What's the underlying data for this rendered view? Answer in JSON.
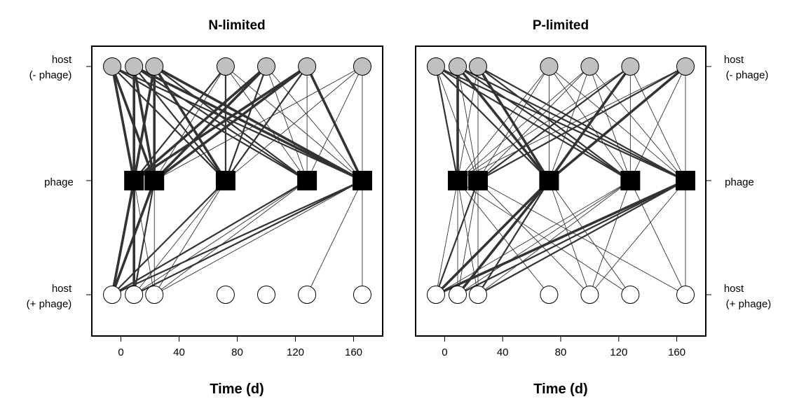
{
  "chart_data": [
    {
      "type": "network",
      "title": "N-limited",
      "xlabel": "Time (d)",
      "xlim": [
        -20,
        180
      ],
      "xticks": [
        0,
        40,
        80,
        120,
        160
      ],
      "rows": [
        {
          "key": "host_minus",
          "line1": "host",
          "line2": "(- phage)"
        },
        {
          "key": "phage",
          "line1": "phage",
          "line2": ""
        },
        {
          "key": "host_plus",
          "line1": "host",
          "line2": "(+ phage)"
        }
      ],
      "row_label_side": "left",
      "nodes": {
        "host_minus": [
          -6,
          9,
          23,
          72,
          100,
          128,
          166
        ],
        "phage": [
          9,
          23,
          72,
          128,
          166
        ],
        "host_plus": [
          -6,
          9,
          23,
          72,
          100,
          128,
          166
        ]
      },
      "links_upper": [
        [
          -6,
          9,
          3
        ],
        [
          -6,
          23,
          3
        ],
        [
          -6,
          72,
          2
        ],
        [
          -6,
          128,
          2
        ],
        [
          -6,
          166,
          2
        ],
        [
          9,
          9,
          3
        ],
        [
          9,
          23,
          3
        ],
        [
          9,
          72,
          2
        ],
        [
          9,
          128,
          2
        ],
        [
          9,
          166,
          3
        ],
        [
          23,
          9,
          3
        ],
        [
          23,
          23,
          3
        ],
        [
          23,
          72,
          3
        ],
        [
          23,
          128,
          2
        ],
        [
          23,
          166,
          3
        ],
        [
          72,
          9,
          2
        ],
        [
          72,
          23,
          1
        ],
        [
          72,
          72,
          2
        ],
        [
          72,
          128,
          1
        ],
        [
          72,
          166,
          1
        ],
        [
          100,
          9,
          3
        ],
        [
          100,
          23,
          3
        ],
        [
          100,
          72,
          2
        ],
        [
          100,
          128,
          1
        ],
        [
          100,
          166,
          1
        ],
        [
          128,
          9,
          3
        ],
        [
          128,
          23,
          3
        ],
        [
          128,
          72,
          2
        ],
        [
          128,
          128,
          1
        ],
        [
          128,
          166,
          3
        ],
        [
          166,
          23,
          1
        ],
        [
          166,
          72,
          1
        ],
        [
          166,
          128,
          1
        ],
        [
          166,
          166,
          1
        ]
      ],
      "links_lower": [
        [
          9,
          -6,
          3
        ],
        [
          9,
          9,
          3
        ],
        [
          9,
          23,
          1
        ],
        [
          23,
          -6,
          3
        ],
        [
          23,
          9,
          2
        ],
        [
          23,
          23,
          1
        ],
        [
          72,
          -6,
          2
        ],
        [
          72,
          9,
          1
        ],
        [
          72,
          23,
          1
        ],
        [
          128,
          -6,
          2
        ],
        [
          128,
          9,
          1
        ],
        [
          128,
          23,
          1
        ],
        [
          166,
          -6,
          2
        ],
        [
          166,
          9,
          2
        ],
        [
          166,
          23,
          1
        ],
        [
          166,
          128,
          1
        ],
        [
          166,
          166,
          1
        ]
      ]
    },
    {
      "type": "network",
      "title": "P-limited",
      "xlabel": "Time (d)",
      "xlim": [
        -20,
        180
      ],
      "xticks": [
        0,
        40,
        80,
        120,
        160
      ],
      "rows": [
        {
          "key": "host_minus",
          "line1": "host",
          "line2": "(- phage)"
        },
        {
          "key": "phage",
          "line1": "phage",
          "line2": ""
        },
        {
          "key": "host_plus",
          "line1": "host",
          "line2": "(+ phage)"
        }
      ],
      "row_label_side": "right",
      "nodes": {
        "host_minus": [
          -6,
          9,
          23,
          72,
          100,
          128,
          166
        ],
        "phage": [
          9,
          23,
          72,
          128,
          166
        ],
        "host_plus": [
          -6,
          9,
          23,
          72,
          100,
          128,
          166
        ]
      },
      "links_upper": [
        [
          -6,
          9,
          2
        ],
        [
          -6,
          23,
          1
        ],
        [
          -6,
          72,
          2
        ],
        [
          -6,
          128,
          2
        ],
        [
          -6,
          166,
          2
        ],
        [
          9,
          9,
          3
        ],
        [
          9,
          23,
          1
        ],
        [
          9,
          72,
          3
        ],
        [
          9,
          128,
          2
        ],
        [
          9,
          166,
          2
        ],
        [
          23,
          9,
          1
        ],
        [
          23,
          23,
          1
        ],
        [
          23,
          72,
          3
        ],
        [
          23,
          128,
          2
        ],
        [
          23,
          166,
          2
        ],
        [
          72,
          9,
          1
        ],
        [
          72,
          23,
          1
        ],
        [
          72,
          72,
          1
        ],
        [
          72,
          128,
          1
        ],
        [
          72,
          166,
          1
        ],
        [
          100,
          9,
          1
        ],
        [
          100,
          23,
          1
        ],
        [
          100,
          72,
          1
        ],
        [
          100,
          128,
          1
        ],
        [
          100,
          166,
          1
        ],
        [
          128,
          9,
          1
        ],
        [
          128,
          23,
          2
        ],
        [
          128,
          72,
          3
        ],
        [
          128,
          128,
          1
        ],
        [
          128,
          166,
          1
        ],
        [
          166,
          9,
          1
        ],
        [
          166,
          23,
          2
        ],
        [
          166,
          72,
          3
        ],
        [
          166,
          128,
          1
        ],
        [
          166,
          166,
          1
        ]
      ],
      "links_lower": [
        [
          9,
          -6,
          1
        ],
        [
          9,
          9,
          1
        ],
        [
          9,
          23,
          1
        ],
        [
          9,
          72,
          1
        ],
        [
          9,
          128,
          1
        ],
        [
          23,
          -6,
          2
        ],
        [
          23,
          9,
          1
        ],
        [
          23,
          23,
          1
        ],
        [
          23,
          100,
          1
        ],
        [
          23,
          166,
          1
        ],
        [
          72,
          -6,
          3
        ],
        [
          72,
          9,
          3
        ],
        [
          72,
          23,
          2
        ],
        [
          72,
          100,
          1
        ],
        [
          72,
          128,
          1
        ],
        [
          128,
          -6,
          1
        ],
        [
          128,
          9,
          1
        ],
        [
          128,
          23,
          1
        ],
        [
          128,
          100,
          1
        ],
        [
          128,
          166,
          1
        ],
        [
          166,
          -6,
          3
        ],
        [
          166,
          9,
          2
        ],
        [
          166,
          23,
          2
        ],
        [
          166,
          100,
          1
        ],
        [
          166,
          166,
          1
        ]
      ]
    }
  ],
  "colors": {
    "host_minus_fill": "#c0c0c0",
    "host_plus_fill": "#ffffff",
    "phage_fill": "#000000",
    "link_color": "#333333",
    "frame": "#000000"
  }
}
